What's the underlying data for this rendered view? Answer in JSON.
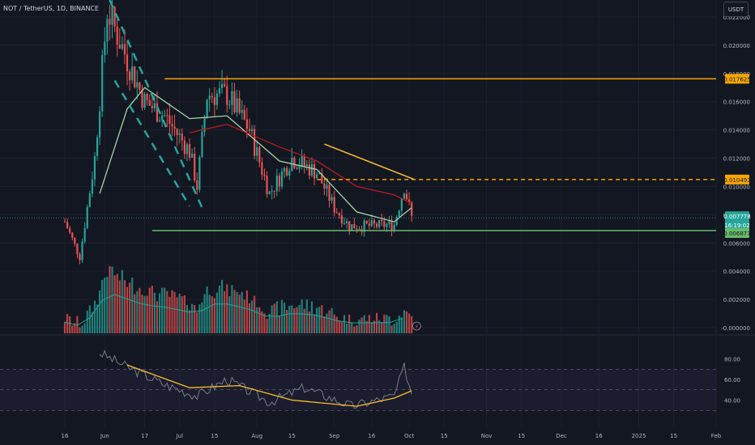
{
  "header": {
    "symbol_title": "NOT / TetherUS, 1D, BINANCE",
    "currency": "USDT"
  },
  "price_axis": {
    "ticks": [
      "0.022000",
      "0.020000",
      "0.018000",
      "0.016000",
      "0.014000",
      "0.012000",
      "0.010000",
      "0.008000",
      "0.006000",
      "0.004000",
      "0.002000",
      "-0.000000"
    ],
    "labels": {
      "resistance_top": "0.017625",
      "resistance_mid": "0.010493",
      "current_price": "0.007778",
      "countdown": "16:19:02",
      "support": "0.006877"
    }
  },
  "rsi_axis": {
    "ticks": [
      "80.00",
      "60.00",
      "40.00"
    ]
  },
  "time_axis": {
    "labels": [
      "16",
      "Jun",
      "17",
      "Jul",
      "15",
      "Aug",
      "15",
      "Sep",
      "16",
      "Oct",
      "15",
      "Nov",
      "15",
      "Dec",
      "16",
      "2025",
      "15",
      "Feb"
    ]
  },
  "colors": {
    "background": "#131722",
    "up": "#26a69a",
    "down": "#ef5350",
    "ema_short": "#a5d6a7",
    "ema_long": "#b71c1c",
    "trend": "#fbc02d",
    "level": "#f7a600",
    "support": "#66bb6a",
    "rsi": "#787b86",
    "rsi_ma": "#fbc02d"
  },
  "chart_data": {
    "type": "candlestick",
    "title": "NOT / TetherUS, 1D, BINANCE",
    "y_unit": "USDT",
    "ylim": [
      -0.0004,
      0.0232
    ],
    "x_range": [
      "2024-05-16",
      "2025-02-01"
    ],
    "candles_close_sample": [
      {
        "date": "2024-05-16",
        "close": 0.0075
      },
      {
        "date": "2024-05-22",
        "close": 0.005
      },
      {
        "date": "2024-05-28",
        "close": 0.012
      },
      {
        "date": "2024-06-02",
        "close": 0.0225
      },
      {
        "date": "2024-06-10",
        "close": 0.019
      },
      {
        "date": "2024-06-17",
        "close": 0.016
      },
      {
        "date": "2024-06-25",
        "close": 0.015
      },
      {
        "date": "2024-07-05",
        "close": 0.0125
      },
      {
        "date": "2024-07-08",
        "close": 0.01
      },
      {
        "date": "2024-07-12",
        "close": 0.0165
      },
      {
        "date": "2024-07-20",
        "close": 0.0165
      },
      {
        "date": "2024-07-29",
        "close": 0.014
      },
      {
        "date": "2024-08-06",
        "close": 0.0095
      },
      {
        "date": "2024-08-15",
        "close": 0.012
      },
      {
        "date": "2024-08-25",
        "close": 0.011
      },
      {
        "date": "2024-09-01",
        "close": 0.0085
      },
      {
        "date": "2024-09-07",
        "close": 0.0072
      },
      {
        "date": "2024-09-15",
        "close": 0.0072
      },
      {
        "date": "2024-09-25",
        "close": 0.0073
      },
      {
        "date": "2024-09-29",
        "close": 0.01
      },
      {
        "date": "2024-10-02",
        "close": 0.0078
      }
    ],
    "lines": {
      "ema_short": [
        {
          "date": "2024-05-30",
          "value": 0.0095
        },
        {
          "date": "2024-06-10",
          "value": 0.0155
        },
        {
          "date": "2024-06-17",
          "value": 0.017
        },
        {
          "date": "2024-07-05",
          "value": 0.0148
        },
        {
          "date": "2024-07-20",
          "value": 0.015
        },
        {
          "date": "2024-08-10",
          "value": 0.0118
        },
        {
          "date": "2024-08-25",
          "value": 0.0112
        },
        {
          "date": "2024-09-10",
          "value": 0.0082
        },
        {
          "date": "2024-09-25",
          "value": 0.0075
        },
        {
          "date": "2024-10-02",
          "value": 0.0085
        }
      ],
      "ema_long": [
        {
          "date": "2024-07-05",
          "value": 0.0138
        },
        {
          "date": "2024-07-20",
          "value": 0.0144
        },
        {
          "date": "2024-08-10",
          "value": 0.0128
        },
        {
          "date": "2024-08-25",
          "value": 0.0118
        },
        {
          "date": "2024-09-10",
          "value": 0.01
        },
        {
          "date": "2024-09-25",
          "value": 0.0094
        },
        {
          "date": "2024-10-02",
          "value": 0.0088
        }
      ],
      "downtrend_line": [
        {
          "date": "2024-08-28",
          "value": 0.013
        },
        {
          "date": "2024-10-03",
          "value": 0.0105
        }
      ],
      "resistance_top": 0.017625,
      "resistance_mid": 0.010493,
      "support": 0.006877,
      "current_price": 0.007778
    },
    "rsi": {
      "ylim": [
        20,
        100
      ],
      "values_sample": [
        {
          "date": "2024-05-30",
          "value": 86
        },
        {
          "date": "2024-06-10",
          "value": 72
        },
        {
          "date": "2024-06-25",
          "value": 55
        },
        {
          "date": "2024-07-08",
          "value": 44
        },
        {
          "date": "2024-07-20",
          "value": 60
        },
        {
          "date": "2024-08-06",
          "value": 38
        },
        {
          "date": "2024-08-20",
          "value": 52
        },
        {
          "date": "2024-09-08",
          "value": 34
        },
        {
          "date": "2024-09-25",
          "value": 44
        },
        {
          "date": "2024-09-29",
          "value": 72
        },
        {
          "date": "2024-10-02",
          "value": 47
        }
      ],
      "ma_sample": [
        {
          "date": "2024-06-10",
          "value": 74
        },
        {
          "date": "2024-07-05",
          "value": 52
        },
        {
          "date": "2024-07-25",
          "value": 54
        },
        {
          "date": "2024-08-15",
          "value": 40
        },
        {
          "date": "2024-09-10",
          "value": 34
        },
        {
          "date": "2024-09-25",
          "value": 42
        },
        {
          "date": "2024-10-02",
          "value": 49
        }
      ],
      "band_upper": 70,
      "band_mid": 50,
      "band_lower": 30
    }
  }
}
